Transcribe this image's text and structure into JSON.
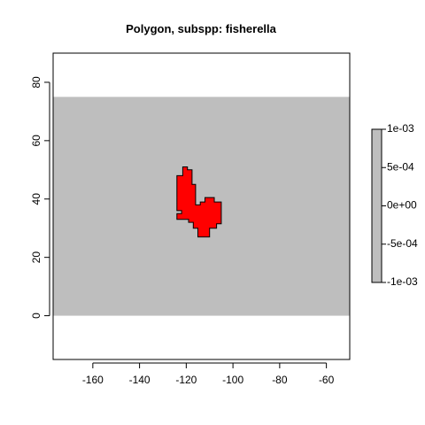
{
  "chart_data": {
    "type": "heatmap",
    "title": "Polygon, subspp: fisherella",
    "xlabel": "",
    "ylabel": "",
    "xlim": [
      -177,
      -50
    ],
    "ylim": [
      -15,
      90
    ],
    "x_ticks": [
      -160,
      -140,
      -120,
      -100,
      -80,
      -60
    ],
    "x_tick_labels": [
      "-160",
      "-140",
      "-120",
      "-100",
      "-80",
      "-60"
    ],
    "y_ticks": [
      0,
      20,
      40,
      60,
      80
    ],
    "y_tick_labels": [
      "0",
      "20",
      "40",
      "60",
      "80"
    ],
    "raster_extent": {
      "x": [
        -177,
        -50
      ],
      "y": [
        0,
        75
      ]
    },
    "raster_color": "#bebebe",
    "polygon": {
      "fill": "#ff0000",
      "stroke": "#000000",
      "coordinates": [
        [
          -123,
          48
        ],
        [
          -121.5,
          48
        ],
        [
          -121.5,
          51
        ],
        [
          -119.5,
          51
        ],
        [
          -119.5,
          50
        ],
        [
          -117.5,
          50
        ],
        [
          -117.5,
          45
        ],
        [
          -116,
          45
        ],
        [
          -116,
          38
        ],
        [
          -114,
          38
        ],
        [
          -114,
          39
        ],
        [
          -112,
          39
        ],
        [
          -112,
          40.5
        ],
        [
          -108,
          40.5
        ],
        [
          -108,
          39
        ],
        [
          -105,
          39
        ],
        [
          -105,
          31.5
        ],
        [
          -107,
          31.5
        ],
        [
          -107,
          30
        ],
        [
          -110,
          30
        ],
        [
          -110,
          27
        ],
        [
          -115,
          27
        ],
        [
          -115,
          30
        ],
        [
          -117,
          30
        ],
        [
          -117,
          32
        ],
        [
          -119,
          32
        ],
        [
          -119,
          33
        ],
        [
          -124,
          33
        ],
        [
          -124,
          35
        ],
        [
          -122,
          35
        ],
        [
          -122,
          36
        ],
        [
          -124,
          36
        ],
        [
          -124,
          48
        ]
      ]
    },
    "legend": {
      "position": "right",
      "tick_labels": [
        "1e-03",
        "5e-04",
        "0e+00",
        "-5e-04",
        "-1e-03"
      ],
      "values": [
        0.001,
        0.0005,
        0,
        -0.0005,
        -0.001
      ],
      "range": [
        -0.001,
        0.001
      ],
      "color": "#bebebe"
    },
    "grid": false
  }
}
